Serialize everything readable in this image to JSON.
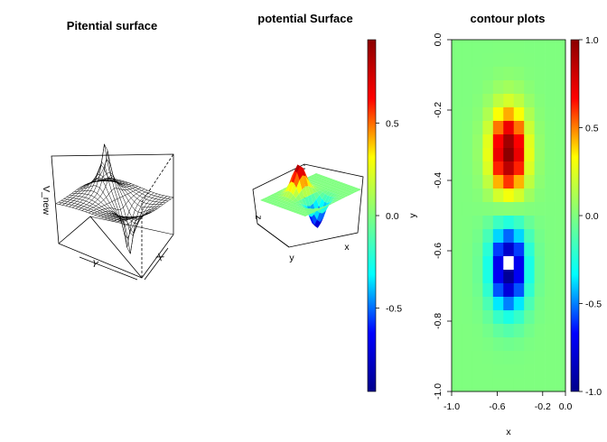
{
  "panels": [
    {
      "title": "Pitential surface",
      "type": "wireframe-surface",
      "axis_labels": {
        "x": "X",
        "y": "Y",
        "z": "V_new"
      }
    },
    {
      "title": "potential Surface",
      "type": "colored-surface",
      "axis_labels": {
        "x": "x",
        "y": "y",
        "z": "z"
      },
      "colorbar": {
        "ticks": [
          "0.5",
          "0.0",
          "-0.5"
        ],
        "tick_values": [
          0.5,
          0.0,
          -0.5
        ],
        "range": [
          -0.95,
          0.95
        ]
      }
    }
  ],
  "chart_data": {
    "type": "heatmap",
    "title": "contour plots",
    "xlabel": "x",
    "ylabel": "y",
    "xlim": [
      -1.0,
      0.0
    ],
    "ylim": [
      -1.0,
      0.0
    ],
    "x_ticks": [
      "-1.0",
      "-0.6",
      "-0.2",
      "0.0"
    ],
    "x_tick_values": [
      -1.0,
      -0.6,
      -0.2,
      0.0
    ],
    "y_ticks": [
      "0.0",
      "-0.2",
      "-0.4",
      "-0.6",
      "-0.8",
      "-1.0"
    ],
    "y_tick_values": [
      0.0,
      -0.2,
      -0.4,
      -0.6,
      -0.8,
      -1.0
    ],
    "value_range": [
      -1.0,
      1.0
    ],
    "colorbar_ticks": [
      "1.0",
      "0.5",
      "0.0",
      "-0.5",
      "-1.0"
    ],
    "colorbar_tick_values": [
      1.0,
      0.5,
      0.0,
      -0.5,
      -1.0
    ],
    "colormap": [
      "#00008b",
      "#0000ff",
      "#00ffff",
      "#7fff7f",
      "#ffff00",
      "#ff0000",
      "#8b0000"
    ],
    "grid": false,
    "grid_shape": [
      26,
      11
    ],
    "features": [
      {
        "kind": "max",
        "x": -0.5,
        "y": -0.32,
        "value": 1.0
      },
      {
        "kind": "min",
        "x": -0.5,
        "y": -0.65,
        "value": -1.0
      }
    ]
  }
}
